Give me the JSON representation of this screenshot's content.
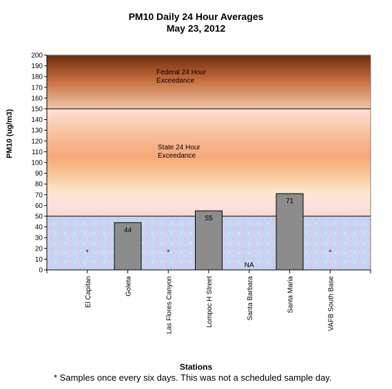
{
  "chart_data": {
    "type": "bar",
    "title": "PM10 Daily 24 Hour Averages",
    "subtitle": "May 23, 2012",
    "xlabel": "Stations",
    "ylabel": "PM10 (ug/m3)",
    "ylim": [
      0,
      200
    ],
    "y_ticks": [
      0,
      10,
      20,
      30,
      40,
      50,
      60,
      70,
      80,
      90,
      100,
      110,
      120,
      130,
      140,
      150,
      160,
      170,
      180,
      190,
      200
    ],
    "categories": [
      "El Capitan",
      "Goleta",
      "Las Flores Canyon",
      "Lompoc H Street",
      "Santa Barbara",
      "Santa Maria",
      "VAFB South Base"
    ],
    "values": [
      null,
      44,
      null,
      55,
      null,
      71,
      null
    ],
    "data_labels": [
      "*",
      "44",
      "*",
      "55",
      "NA",
      "71",
      "*"
    ],
    "bands": [
      {
        "label": "Federal 24 Hour Exceedance",
        "from": 150,
        "to": 200
      },
      {
        "label": "State 24 Hour Exceedance",
        "from": 50,
        "to": 150
      }
    ],
    "threshold_lines": [
      50,
      150
    ],
    "footnote": "*  Samples once every six days.  This was not a scheduled sample day.",
    "colors": {
      "bar": "#8c8c8c",
      "federal_top": "#6e2b0c",
      "federal_bottom": "#f0c8a8",
      "state_peach": "#f6a878",
      "state_pink": "#fde0dc",
      "lower_band": "#c8d4f0"
    }
  }
}
